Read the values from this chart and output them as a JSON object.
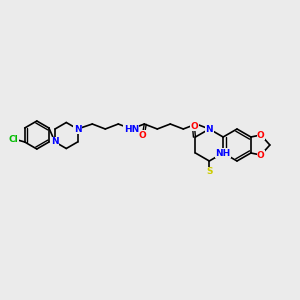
{
  "bg_color": "#ebebeb",
  "bond_color": "#000000",
  "atom_colors": {
    "N": "#0000ff",
    "O": "#ff0000",
    "S": "#cccc00",
    "Cl": "#00bb00",
    "C": "#000000",
    "H": "#888888"
  },
  "font_size": 6.5,
  "figsize": [
    3.0,
    3.0
  ],
  "dpi": 100,
  "xlim": [
    0,
    300
  ],
  "ylim": [
    0,
    300
  ]
}
